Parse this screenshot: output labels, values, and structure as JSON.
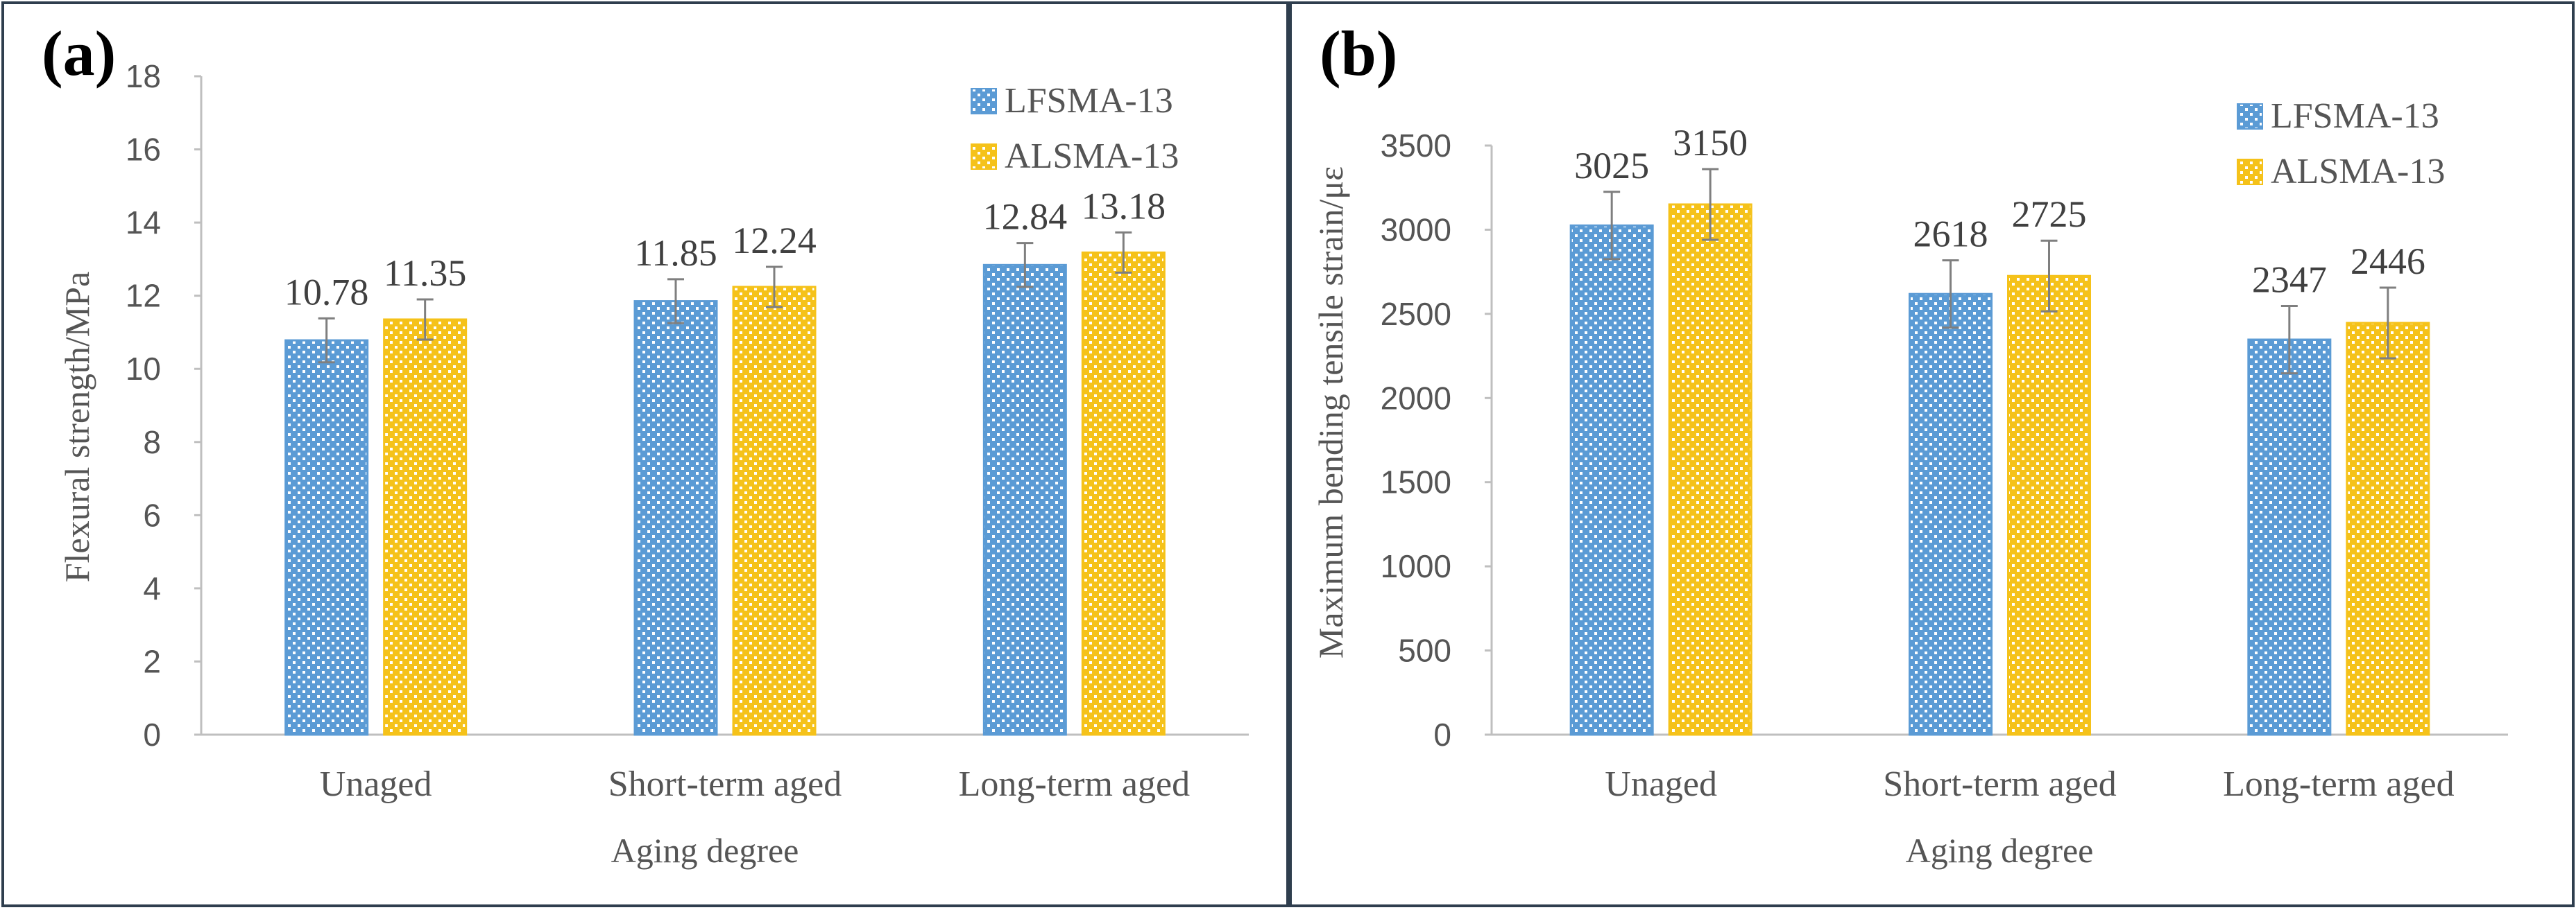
{
  "figure": {
    "colors": {
      "LFSMA-13": "#5b9bd5",
      "ALSMA-13": "#f5c21a",
      "axis": "#bfbfbf",
      "frame": "#2f3e4e",
      "error_bar": "#7f7f7f"
    }
  },
  "chart_data": [
    {
      "panel": "(a)",
      "type": "bar",
      "xlabel": "Aging degree",
      "ylabel": "Flexural strength/MPa",
      "categories": [
        "Unaged",
        "Short-term aged",
        "Long-term aged"
      ],
      "ylim": [
        0,
        18
      ],
      "yticks": [
        0,
        2,
        4,
        6,
        8,
        10,
        12,
        14,
        16,
        18
      ],
      "legend_position": "top-right",
      "series": [
        {
          "name": "LFSMA-13",
          "values": [
            10.78,
            11.85,
            12.84
          ],
          "errors": [
            0.6,
            0.6,
            0.6
          ],
          "labels": [
            "10.78",
            "11.85",
            "12.84"
          ]
        },
        {
          "name": "ALSMA-13",
          "values": [
            11.35,
            12.24,
            13.18
          ],
          "errors": [
            0.55,
            0.55,
            0.55
          ],
          "labels": [
            "11.35",
            "12.24",
            "13.18"
          ]
        }
      ]
    },
    {
      "panel": "(b)",
      "type": "bar",
      "xlabel": "Aging degree",
      "ylabel": "Maximum bending tensile strain/με",
      "categories": [
        "Unaged",
        "Short-term aged",
        "Long-term aged"
      ],
      "ylim": [
        0,
        3500
      ],
      "yticks": [
        0,
        500,
        1000,
        1500,
        2000,
        2500,
        3000,
        3500
      ],
      "legend_position": "top-right",
      "series": [
        {
          "name": "LFSMA-13",
          "values": [
            3025,
            2618,
            2347
          ],
          "errors": [
            200,
            200,
            200
          ],
          "labels": [
            "3025",
            "2618",
            "2347"
          ]
        },
        {
          "name": "ALSMA-13",
          "values": [
            3150,
            2725,
            2446
          ],
          "errors": [
            210,
            210,
            210
          ],
          "labels": [
            "3150",
            "2725",
            "2446"
          ]
        }
      ]
    }
  ]
}
